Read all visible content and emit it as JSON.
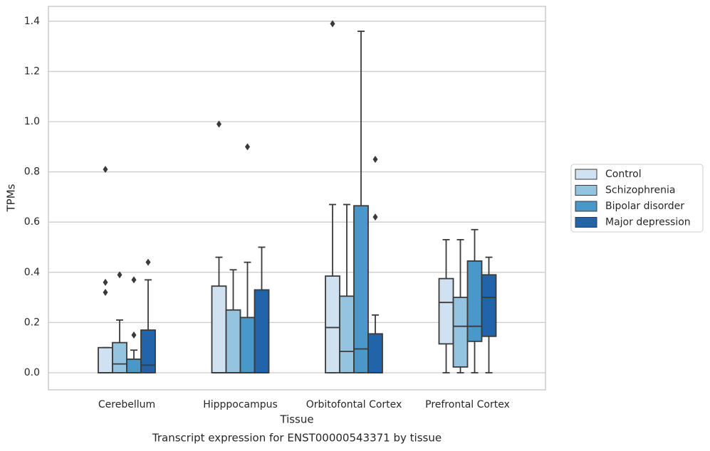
{
  "chart_data": {
    "type": "box",
    "title": "Transcript expression for ENST00000543371 by tissue",
    "x_label": "Tissue",
    "y_label": "TPMs",
    "categories": [
      "Cerebellum",
      "Hipppocampus",
      "Orbitofontal Cortex",
      "Prefrontal Cortex"
    ],
    "ylim": [
      -0.068,
      1.459
    ],
    "yticks": [
      {
        "value": 0,
        "label": "0.0"
      },
      0.2,
      0.4,
      0.6,
      0.8,
      {
        "value": 1,
        "label": "1.0"
      },
      1.2,
      1.4
    ],
    "grid": true,
    "legend": "outside-right",
    "series": [
      {
        "name": "Control",
        "color": "#d0e1f2",
        "values": [
          {
            "min": 0,
            "q1": 0,
            "median": 0,
            "q3": 0.1,
            "max": 0.1,
            "outliers": [
              0.81,
              0.36,
              0.32
            ]
          },
          {
            "min": 0,
            "q1": 0,
            "median": 0,
            "q3": 0.345,
            "max": 0.46,
            "outliers": [
              0.99
            ]
          },
          {
            "min": 0,
            "q1": 0,
            "median": 0.18,
            "q3": 0.385,
            "max": 0.67,
            "outliers": [
              1.39
            ]
          },
          {
            "min": 0,
            "q1": 0.115,
            "median": 0.28,
            "q3": 0.375,
            "max": 0.53,
            "outliers": []
          }
        ]
      },
      {
        "name": "Schizophrenia",
        "color": "#94c4df",
        "values": [
          {
            "min": 0,
            "q1": 0,
            "median": 0.035,
            "q3": 0.12,
            "max": 0.21,
            "outliers": [
              0.39
            ]
          },
          {
            "min": 0,
            "q1": 0,
            "median": 0,
            "q3": 0.25,
            "max": 0.41,
            "outliers": []
          },
          {
            "min": 0,
            "q1": 0,
            "median": 0.085,
            "q3": 0.305,
            "max": 0.67,
            "outliers": []
          },
          {
            "min": 0,
            "q1": 0.023,
            "median": 0.185,
            "q3": 0.3,
            "max": 0.53,
            "outliers": []
          }
        ]
      },
      {
        "name": "Bipolar disorder",
        "color": "#4a98c9",
        "values": [
          {
            "min": 0,
            "q1": 0,
            "median": 0,
            "q3": 0.054,
            "max": 0.09,
            "outliers": [
              0.37,
              0.15
            ]
          },
          {
            "min": 0,
            "q1": 0,
            "median": 0,
            "q3": 0.22,
            "max": 0.44,
            "outliers": [
              0.9
            ]
          },
          {
            "min": 0,
            "q1": 0,
            "median": 0.095,
            "q3": 0.665,
            "max": 1.36,
            "outliers": []
          },
          {
            "min": 0,
            "q1": 0.125,
            "median": 0.185,
            "q3": 0.445,
            "max": 0.57,
            "outliers": []
          }
        ]
      },
      {
        "name": "Major depression",
        "color": "#2164a9",
        "values": [
          {
            "min": 0,
            "q1": 0,
            "median": 0.03,
            "q3": 0.17,
            "max": 0.37,
            "outliers": [
              0.44
            ]
          },
          {
            "min": 0,
            "q1": 0,
            "median": 0,
            "q3": 0.33,
            "max": 0.5,
            "outliers": []
          },
          {
            "min": 0,
            "q1": 0,
            "median": 0,
            "q3": 0.155,
            "max": 0.23,
            "outliers": [
              0.85,
              0.62
            ]
          },
          {
            "min": 0,
            "q1": 0.145,
            "median": 0.3,
            "q3": 0.39,
            "max": 0.46,
            "outliers": []
          }
        ]
      }
    ]
  }
}
